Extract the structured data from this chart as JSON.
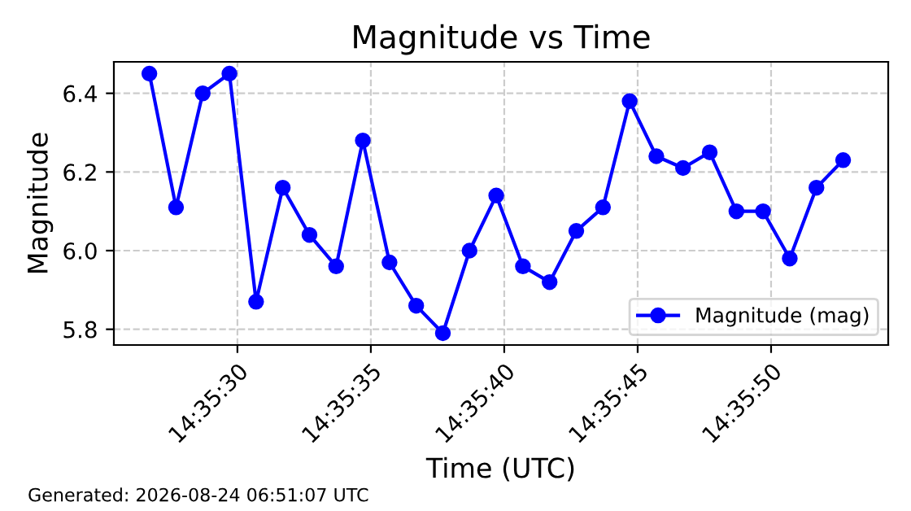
{
  "chart_data": {
    "type": "line",
    "title": "Magnitude vs Time",
    "xlabel": "Time (UTC)",
    "ylabel": "Magnitude",
    "x": [
      14.59075,
      14.5910278,
      14.5913056,
      14.5915833,
      14.5918611,
      14.5921389,
      14.5924167,
      14.5926944,
      14.5929722,
      14.59325,
      14.5935278,
      14.5938056,
      14.5940833,
      14.5943611,
      14.5946389,
      14.5949167,
      14.5951944,
      14.5954722,
      14.59575,
      14.5960278,
      14.5963056,
      14.5965833,
      14.5968611,
      14.5971389,
      14.5974167,
      14.5976944,
      14.5979722
    ],
    "series": [
      {
        "name": "Magnitude (mag)",
        "color": "#0000ff",
        "values": [
          6.45,
          6.11,
          6.4,
          6.45,
          5.87,
          6.16,
          6.04,
          5.96,
          6.28,
          5.97,
          5.86,
          5.79,
          6.0,
          6.14,
          5.96,
          5.92,
          6.05,
          6.11,
          6.38,
          6.24,
          6.21,
          6.25,
          6.1,
          6.1,
          5.98,
          6.16,
          6.23
        ]
      }
    ],
    "xlim": [
      14.5903806,
      14.5984417
    ],
    "xticks": [
      {
        "value": 14.5916667,
        "label": "14:35:30"
      },
      {
        "value": 14.5930556,
        "label": "14:35:35"
      },
      {
        "value": 14.5944444,
        "label": "14:35:40"
      },
      {
        "value": 14.5958333,
        "label": "14:35:45"
      },
      {
        "value": 14.5972222,
        "label": "14:35:50"
      }
    ],
    "ylim": [
      5.76,
      6.48
    ],
    "yticks": [
      5.8,
      {
        "value": 6.0,
        "label": "6.0"
      },
      6.2,
      6.4
    ],
    "grid": true,
    "legend": "bottom right",
    "marker": "circle",
    "line_style": "solid",
    "annotations": [
      "Generated: 2026-08-24 06:51:07 UTC"
    ]
  }
}
